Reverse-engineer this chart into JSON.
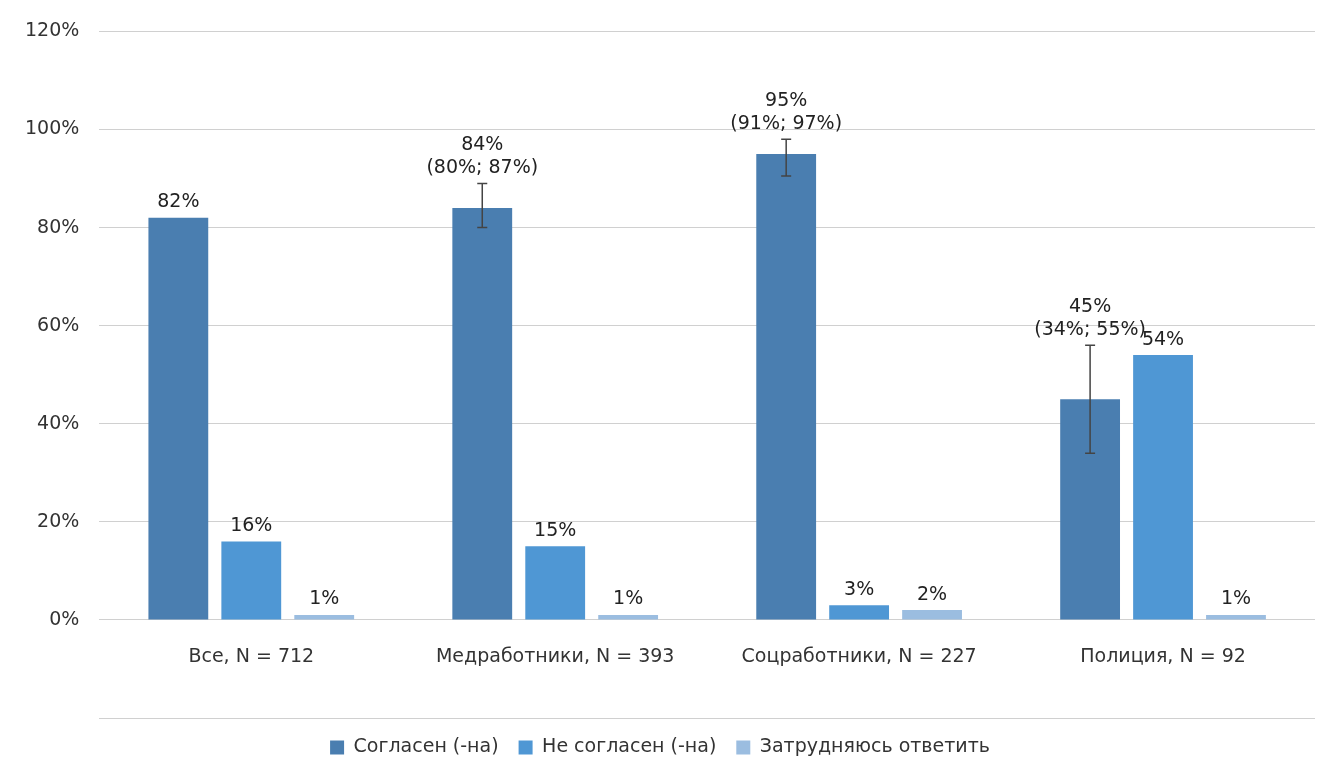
{
  "chart_data": {
    "type": "bar",
    "categories": [
      "Все, N = 712",
      "Медработники, N = 393",
      "Соцработники, N = 227",
      "Полиция, N = 92"
    ],
    "series": [
      {
        "name": "Согласен (-на)",
        "color": "#4a7eb0",
        "values": [
          82,
          84,
          95,
          45
        ],
        "errors": [
          null,
          [
            80,
            89
          ],
          [
            90.5,
            98
          ],
          [
            34,
            56
          ]
        ],
        "value_labels": [
          "82%",
          "84%\n(80%; 87%)",
          "95%\n(91%; 97%)",
          "45%\n(34%; 55%)"
        ]
      },
      {
        "name": "Не согласен (-на)",
        "color": "#4f97d4",
        "values": [
          16,
          15,
          3,
          54
        ],
        "value_labels": [
          "16%",
          "15%",
          "3%",
          "54%"
        ]
      },
      {
        "name": "Затрудняюсь ответить",
        "color": "#9bbde0",
        "values": [
          1,
          1,
          2,
          1
        ],
        "value_labels": [
          "1%",
          "1%",
          "2%",
          "1%"
        ]
      }
    ],
    "ylim": [
      -20,
      120
    ],
    "yticks": [
      {
        "value": -20,
        "label": null
      },
      {
        "value": 0,
        "label": "0%"
      },
      {
        "value": 20,
        "label": "20%"
      },
      {
        "value": 40,
        "label": "40%"
      },
      {
        "value": 60,
        "label": "60%"
      },
      {
        "value": 80,
        "label": "80%"
      },
      {
        "value": 100,
        "label": "100%"
      },
      {
        "value": 120,
        "label": "120%"
      }
    ],
    "grid": "y",
    "legend": "bottom"
  }
}
